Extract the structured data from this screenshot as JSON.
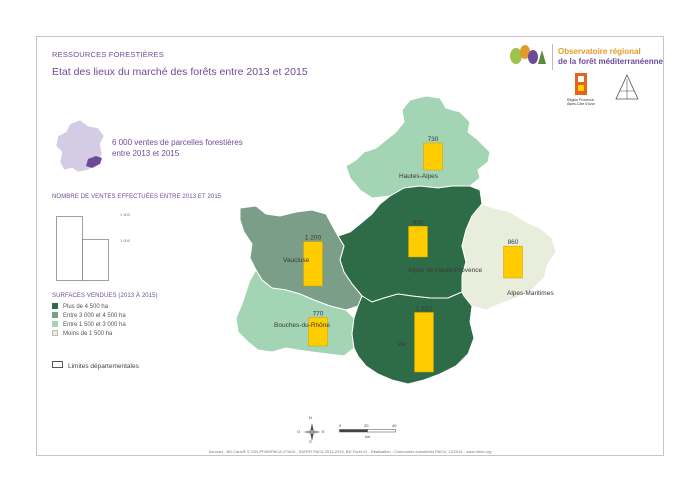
{
  "header": {
    "kicker": "RESSOURCES FORESTIÈRES",
    "title": "Etat des lieux du marché des forêts entre 2013 et 2015"
  },
  "logo": {
    "line1": "Observatoire régional",
    "line2": "de la forêt méditerranéenne",
    "region_label": "Région Provence-Alpes-Côte d'Azur"
  },
  "stat_text": "6 000 ventes de parcelles forestières entre 2013 et 2015",
  "sales_legend": {
    "title": "NOMBRE DE VENTES EFFECTUÉES ENTRE 2013 ET 2015",
    "ref_large": "1 500",
    "ref_small": "1 000"
  },
  "surface_legend": {
    "title": "SURFACES VENDUES (2013 À 2015)",
    "items": [
      {
        "label": "Plus de 4 500 ha",
        "color": "#2e6b47"
      },
      {
        "label": "Entre 3 000 et 4 500 ha",
        "color": "#7a9e87"
      },
      {
        "label": "Entre 1 500 et 3 000 ha",
        "color": "#a3d4b3"
      },
      {
        "label": "Moins de 1 500 ha",
        "color": "#e8eedb"
      }
    ]
  },
  "limits_label": "Limites départementales",
  "map": {
    "departments": [
      {
        "name": "Hautes-Alpes",
        "sales": 730,
        "color": "#a3d4b3"
      },
      {
        "name": "Alpes de Haute-Provence",
        "sales": 830,
        "color": "#2e6b47"
      },
      {
        "name": "Vaucluse",
        "sales": 1200,
        "color": "#7a9e87"
      },
      {
        "name": "Alpes-Maritimes",
        "sales": 860,
        "color": "#e8eedb"
      },
      {
        "name": "Bouches-du-Rhône",
        "sales": 770,
        "color": "#a3d4b3"
      },
      {
        "name": "Var",
        "sales": 1610,
        "color": "#2e6b47"
      }
    ],
    "bar_color": "#ffcc00",
    "sales_labels": [
      "730",
      "830",
      "1 200",
      "860",
      "770",
      "1 610"
    ]
  },
  "compass": {
    "n": "N",
    "s": "S",
    "e": "E",
    "o": "O"
  },
  "scale": {
    "t0": "0",
    "t1": "20",
    "t2": "40",
    "unit": "km"
  },
  "source": "Sources : BD Carto® © IGN-PFAR/PACA n°0610 , SAFER PACA 2013-2015, BD Forêt v2 - Réalisation : Communes forestières PACA, 12/2016 - www.ofme.org"
}
